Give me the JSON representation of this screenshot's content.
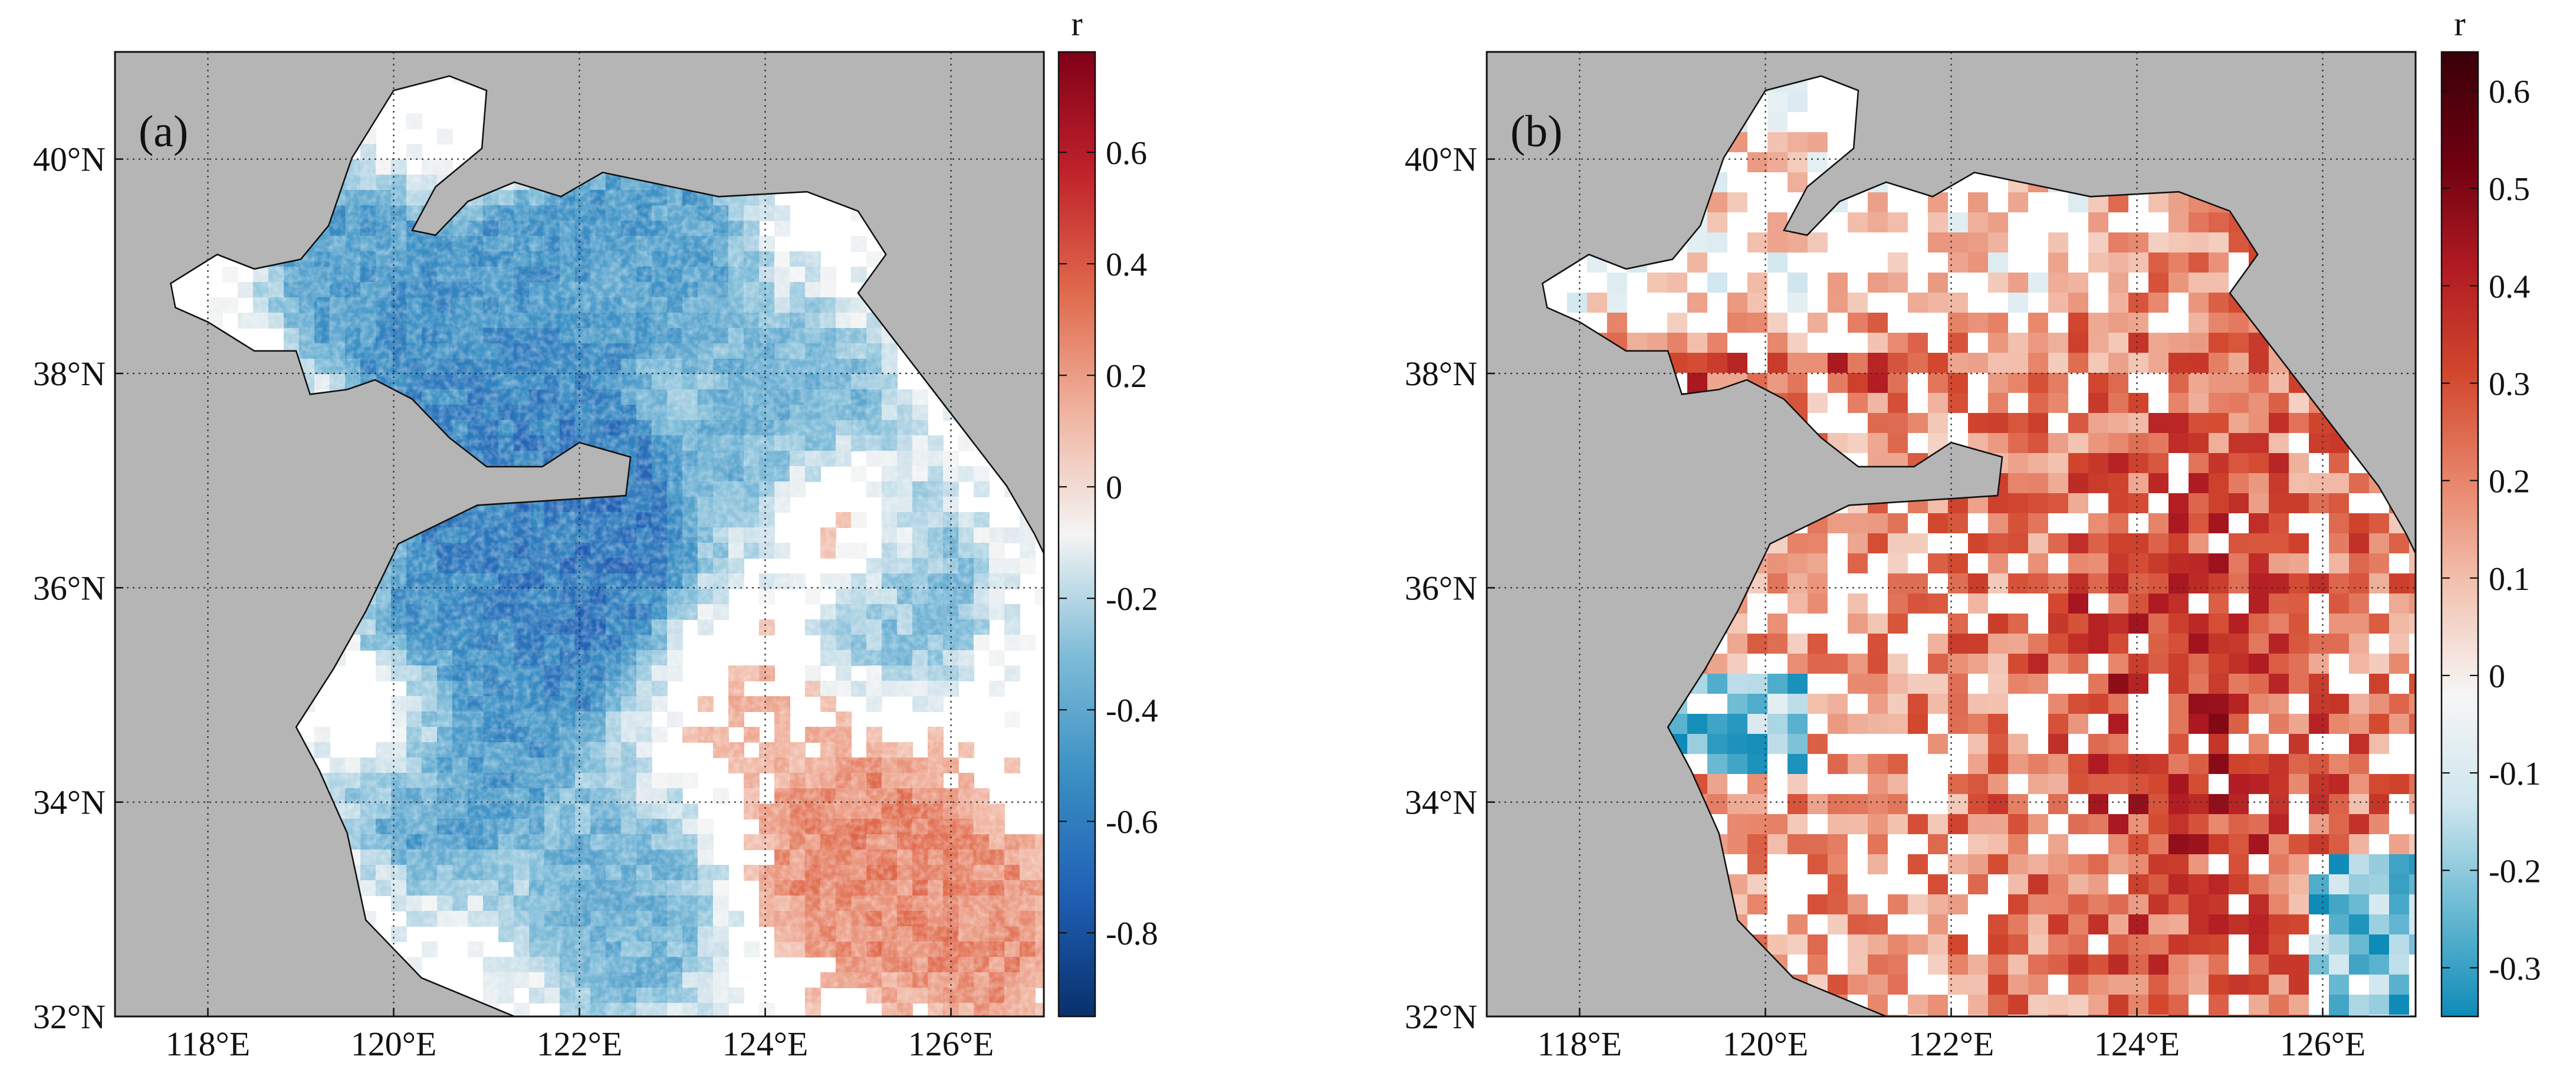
{
  "figure": {
    "panels": [
      {
        "id": "a",
        "label": "(a)",
        "lon_ticks": [
          "118°E",
          "120°E",
          "122°E",
          "124°E",
          "126°E"
        ],
        "lat_ticks": [
          "40°N",
          "38°N",
          "36°N",
          "34°N",
          "32°N"
        ],
        "colorbar": {
          "title": "r",
          "ticks": [
            "0.6",
            "0.4",
            "0.2",
            "0",
            "-0.2",
            "-0.4",
            "-0.6",
            "-0.8"
          ],
          "tick_values": [
            0.6,
            0.4,
            0.2,
            0,
            -0.2,
            -0.4,
            -0.6,
            -0.8
          ],
          "range": [
            -0.95,
            0.78
          ],
          "colors": [
            "#08306b",
            "#1f5fb4",
            "#3a8fc4",
            "#7fbcd8",
            "#f4f4f4",
            "#f0b4a0",
            "#e06a4c",
            "#c0222a",
            "#800018"
          ]
        }
      },
      {
        "id": "b",
        "label": "(b)",
        "lon_ticks": [
          "118°E",
          "120°E",
          "122°E",
          "124°E",
          "126°E"
        ],
        "lat_ticks": [
          "40°N",
          "38°N",
          "36°N",
          "34°N",
          "32°N"
        ],
        "colorbar": {
          "title": "r",
          "ticks": [
            "0.6",
            "0.5",
            "0.4",
            "0.3",
            "0.2",
            "0.1",
            "0",
            "-0.1",
            "-0.2",
            "-0.3"
          ],
          "tick_values": [
            0.6,
            0.5,
            0.4,
            0.3,
            0.2,
            0.1,
            0,
            -0.1,
            -0.2,
            -0.3
          ],
          "range": [
            -0.35,
            0.64
          ],
          "colors": [
            "#0e8bb8",
            "#6bbad3",
            "#cfe6ee",
            "#f6f6f6",
            "#f3c4b2",
            "#e7856a",
            "#d2472e",
            "#b01a22",
            "#6d0010",
            "#3a0008"
          ]
        }
      }
    ],
    "map_extent": {
      "lon": [
        117,
        127
      ],
      "lat": [
        32,
        41
      ]
    },
    "land_color": "#b5b5b5",
    "sea_color": "#ffffff"
  }
}
